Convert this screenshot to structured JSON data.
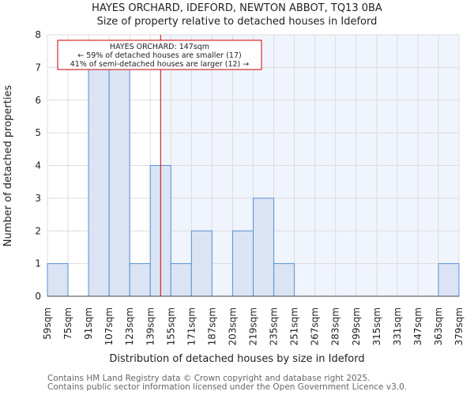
{
  "chart_data": {
    "type": "bar",
    "title": "HAYES ORCHARD, IDEFORD, NEWTON ABBOT, TQ13 0BA",
    "subtitle": "Size of property relative to detached houses in Ideford",
    "xlabel": "Distribution of detached houses by size in Ideford",
    "ylabel": "Number of detached properties",
    "bin_edges": [
      "59sqm",
      "75sqm",
      "91sqm",
      "107sqm",
      "123sqm",
      "139sqm",
      "155sqm",
      "171sqm",
      "187sqm",
      "203sqm",
      "219sqm",
      "235sqm",
      "251sqm",
      "267sqm",
      "283sqm",
      "299sqm",
      "315sqm",
      "331sqm",
      "347sqm",
      "363sqm",
      "379sqm"
    ],
    "bin_start": 59,
    "bin_width": 16,
    "values": [
      1,
      0,
      7,
      7,
      1,
      4,
      1,
      2,
      0,
      2,
      3,
      1,
      0,
      0,
      0,
      0,
      0,
      0,
      0,
      1
    ],
    "yticks": [
      "0",
      "1",
      "2",
      "3",
      "4",
      "5",
      "6",
      "7",
      "8"
    ],
    "ylim": [
      0,
      8
    ],
    "grid": true,
    "marker": {
      "value": 147,
      "color": "#cc0000"
    },
    "annotation": {
      "line1": "HAYES ORCHARD: 147sqm",
      "line2": "← 59% of detached houses are smaller (17)",
      "line3": "41% of semi-detached houses are larger (12) →"
    },
    "colors": {
      "bar_fill": "#dae4f4",
      "bar_edge": "#5b8fd6",
      "bg_right": "#f0f4fc"
    }
  },
  "footer": {
    "line1": "Contains HM Land Registry data © Crown copyright and database right 2025.",
    "line2": "Contains public sector information licensed under the Open Government Licence v3.0."
  }
}
